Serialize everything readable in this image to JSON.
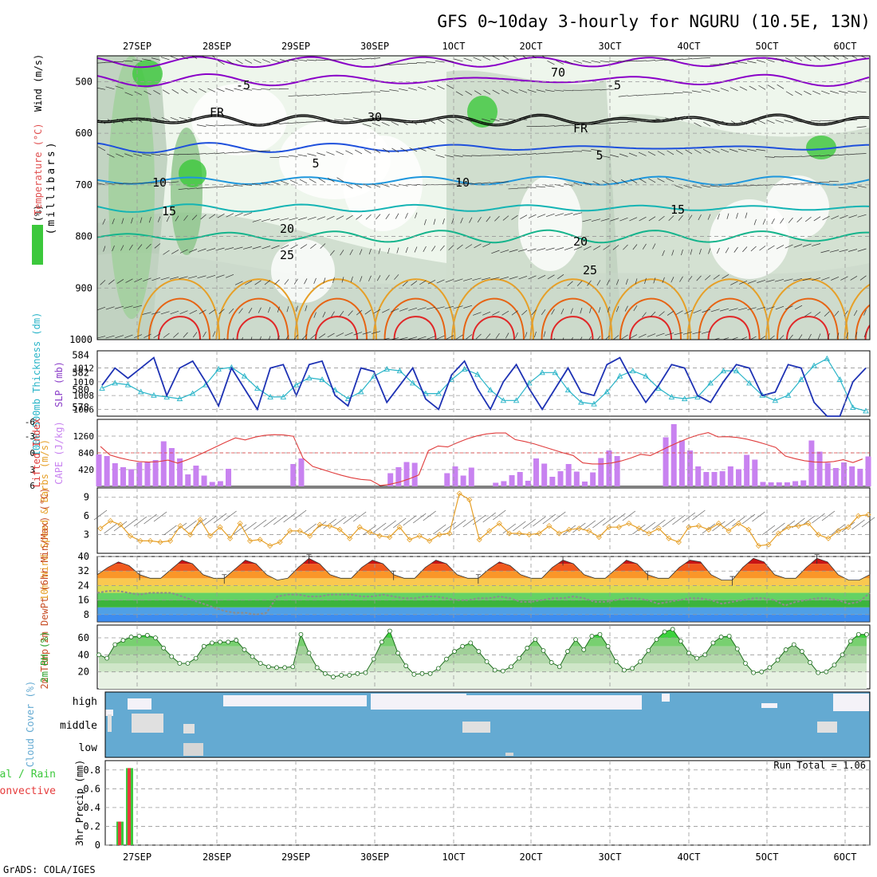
{
  "title": "GFS 0~10day 3-hourly for NGURU (10.5E, 13N)",
  "footer": "GrADS: COLA/IGES",
  "date_labels": [
    "27SEP",
    "28SEP",
    "29SEP",
    "30SEP",
    "1OCT",
    "2OCT",
    "3OCT",
    "4OCT",
    "5OCT",
    "6OCT"
  ],
  "colors": {
    "rh_green": "#3cc83c",
    "temp_purple": "#8a00c8",
    "slp": "#1e32b4",
    "thick": "#28b4c8",
    "lifted": "#e03c3c",
    "cape": "#c882f0",
    "wind": "#e6a028",
    "cloud": "#64aad2",
    "precip_total": "#3cc83c",
    "precip_conv": "#e63c3c"
  },
  "chart_data": [
    {
      "type": "heatmap",
      "name_on_chart": "",
      "ylabel": "(millibars)",
      "left_labels": [
        "RH (%)",
        "Temperature (°C)",
        "Wind (m/s)"
      ],
      "yticks": [
        "500",
        "600",
        "700",
        "800",
        "900",
        "1000"
      ],
      "ylim": [
        1000,
        450
      ],
      "contour_labels": [
        "-5",
        "FR",
        "5",
        "10",
        "15",
        "20",
        "25",
        "30",
        "70"
      ]
    },
    {
      "type": "line",
      "ylabel_left": "1000-500mb Thickness (dm)",
      "ylabel_right": "SLP (mb)",
      "yticks_left": [
        "578",
        "580",
        "582",
        "584"
      ],
      "yticks_right": [
        "1006",
        "1008",
        "1010",
        "1012"
      ],
      "ylim_right": [
        1005,
        1014.5
      ],
      "slp": [
        1009.5,
        1012,
        1010.5,
        1012,
        1013.5,
        1008,
        1012,
        1013,
        1010,
        1006.5,
        1012,
        1009,
        1006,
        1012,
        1012.5,
        1008,
        1012.5,
        1013,
        1008,
        1006.5,
        1012,
        1011.5,
        1007,
        1009.5,
        1012,
        1007.5,
        1006,
        1011,
        1013,
        1009,
        1006,
        1010,
        1012.5,
        1009,
        1006,
        1009,
        1012,
        1008.5,
        1008,
        1012.5,
        1013.5,
        1010,
        1007,
        1009.5,
        1012.5,
        1012,
        1008,
        1007,
        1010,
        1012.5,
        1012,
        1008,
        1008.5,
        1012.5,
        1012,
        1007,
        1005,
        1005,
        1010,
        1012
      ],
      "thickness": [
        580.2,
        580.8,
        580.6,
        579.8,
        579.4,
        579.2,
        579,
        579.6,
        580.6,
        582.4,
        582.6,
        581.6,
        580.2,
        579.2,
        579.2,
        580.6,
        581.4,
        581.2,
        580,
        579,
        579.8,
        581.6,
        582.4,
        582.2,
        580.8,
        579.6,
        579.6,
        581.2,
        582.4,
        581.8,
        580,
        578.8,
        578.8,
        580.8,
        582,
        582,
        580,
        578.6,
        578.4,
        579.8,
        581.6,
        582.2,
        581.6,
        580.2,
        579.2,
        579,
        579.2,
        580.8,
        582.2,
        582.2,
        580.8,
        579.4,
        578.8,
        579.4,
        581.2,
        582.8,
        583.6,
        581.2,
        578,
        577.6
      ]
    },
    {
      "type": "bar",
      "ylabel_left": "Lifted Index",
      "ylabel_right": "CAPE (J/kg)",
      "yticks_left": [
        "-6",
        "-3",
        "0",
        "3",
        "6"
      ],
      "yticks_right": [
        "420",
        "840",
        "1260"
      ],
      "ylim_cape": [
        0,
        1680
      ],
      "cape": [
        800,
        760,
        580,
        480,
        430,
        600,
        620,
        660,
        1130,
        960,
        700,
        300,
        520,
        270,
        110,
        130,
        440,
        0,
        0,
        0,
        0,
        0,
        0,
        0,
        560,
        700,
        0,
        0,
        0,
        0,
        0,
        0,
        0,
        0,
        0,
        0,
        330,
        480,
        610,
        590,
        0,
        0,
        0,
        330,
        500,
        270,
        470,
        0,
        0,
        90,
        130,
        280,
        360,
        140,
        700,
        570,
        240,
        380,
        560,
        370,
        120,
        350,
        710,
        900,
        760,
        0,
        0,
        0,
        0,
        0,
        1230,
        1560,
        1150,
        900,
        500,
        360,
        360,
        380,
        500,
        430,
        790,
        670,
        110,
        100,
        100,
        100,
        130,
        150,
        1150,
        870,
        590,
        460,
        600,
        500,
        440,
        750
      ]
    },
    {
      "type": "line",
      "ylabel": "10m Wind Speed & Barbs (m/s)",
      "yticks": [
        "3",
        "6",
        "9"
      ],
      "ylim": [
        0,
        10.5
      ],
      "speed": [
        4,
        5.2,
        4.6,
        2.8,
        2,
        2,
        1.8,
        2,
        4.4,
        3,
        5.4,
        2.8,
        4.2,
        2.4,
        4.8,
        2,
        2.2,
        1.2,
        1.8,
        3.6,
        3.6,
        2.8,
        4.6,
        4.4,
        3.8,
        2.4,
        4.2,
        3.4,
        2.8,
        2.6,
        4.2,
        2.2,
        2.8,
        2,
        3,
        3.2,
        9.6,
        8.6,
        2.2,
        3.6,
        4.8,
        3.2,
        3.2,
        3,
        3.2,
        4.4,
        3.2,
        3.8,
        4,
        3.6,
        2.6,
        4.2,
        4.2,
        4.8,
        4,
        3.2,
        4,
        2.4,
        1.8,
        4.2,
        4.4,
        3.8,
        4.8,
        3.6,
        4.8,
        3.8,
        1.2,
        1.4,
        3.2,
        4.2,
        4.4,
        4.8,
        3,
        2.4,
        3.6,
        4.2,
        6,
        6.2
      ]
    },
    {
      "type": "area",
      "ylabel": "2m Temp 2m DewPt (6hr Min/Max) (°C)",
      "yticks": [
        "8",
        "16",
        "24",
        "32",
        "40"
      ],
      "ylim": [
        4,
        40
      ],
      "temp": [
        30,
        34,
        37,
        35,
        30,
        28,
        28,
        33,
        38,
        36,
        30,
        28,
        28,
        33,
        38,
        36,
        30,
        27,
        28,
        34,
        39,
        36,
        30,
        28,
        28,
        34,
        38,
        36,
        30,
        28,
        28,
        34,
        38,
        36,
        30,
        28,
        28,
        33,
        37,
        35,
        30,
        28,
        28,
        34,
        38,
        36,
        30,
        28,
        28,
        33,
        38,
        36,
        30,
        28,
        28,
        34,
        38,
        37,
        30,
        27,
        27,
        34,
        39,
        37,
        30,
        28,
        28,
        34,
        39,
        37,
        30,
        27,
        27,
        30
      ],
      "dewpoint": [
        20,
        21,
        21,
        20,
        19,
        20,
        20,
        20,
        18,
        16,
        14,
        12,
        10,
        9,
        9,
        8,
        9,
        18,
        19,
        19,
        18,
        18,
        19,
        19,
        19,
        18,
        18,
        19,
        18,
        17,
        17,
        18,
        18,
        17,
        16,
        16,
        17,
        17,
        18,
        17,
        15,
        15,
        16,
        17,
        17,
        18,
        17,
        15,
        15,
        16,
        17,
        17,
        16,
        14,
        15,
        16,
        17,
        17,
        16,
        14,
        15,
        16,
        17,
        17,
        16,
        13,
        15,
        16,
        17,
        17,
        16,
        14,
        15,
        20
      ]
    },
    {
      "type": "area",
      "ylabel": "2m RH (%)",
      "yticks": [
        "20",
        "40",
        "60"
      ],
      "ylim": [
        0,
        75
      ],
      "rh": [
        40,
        36,
        52,
        57,
        61,
        62,
        63,
        60,
        48,
        38,
        30,
        30,
        36,
        50,
        54,
        55,
        55,
        57,
        46,
        38,
        30,
        26,
        25,
        25,
        26,
        64,
        42,
        25,
        18,
        14,
        16,
        16,
        18,
        19,
        35,
        55,
        68,
        42,
        27,
        17,
        18,
        18,
        24,
        35,
        44,
        50,
        54,
        44,
        32,
        22,
        21,
        26,
        36,
        48,
        58,
        45,
        31,
        26,
        44,
        58,
        46,
        62,
        64,
        50,
        32,
        22,
        24,
        32,
        45,
        58,
        67,
        70,
        56,
        42,
        36,
        40,
        54,
        61,
        62,
        47,
        30,
        19,
        20,
        25,
        34,
        46,
        52,
        44,
        31,
        19,
        20,
        28,
        40,
        56,
        64,
        64
      ]
    },
    {
      "type": "heatmap",
      "ylabel": "Cloud Cover (%)",
      "rows": [
        "high",
        "middle",
        "low"
      ]
    },
    {
      "type": "bar",
      "ylabel": "3hr Precip (mm)",
      "left_labels": [
        "Total / Rain",
        "Convective"
      ],
      "annotation": "Run Total = 1.06",
      "yticks": [
        "0",
        "0.2",
        "0.4",
        "0.6",
        "0.8"
      ],
      "ylim": [
        0,
        0.9
      ],
      "total": [
        0,
        0,
        0,
        0,
        0.25,
        0.82,
        0,
        0,
        0
      ],
      "convective": [
        0,
        0,
        0,
        0,
        0.25,
        0.82,
        0,
        0,
        0
      ]
    }
  ]
}
